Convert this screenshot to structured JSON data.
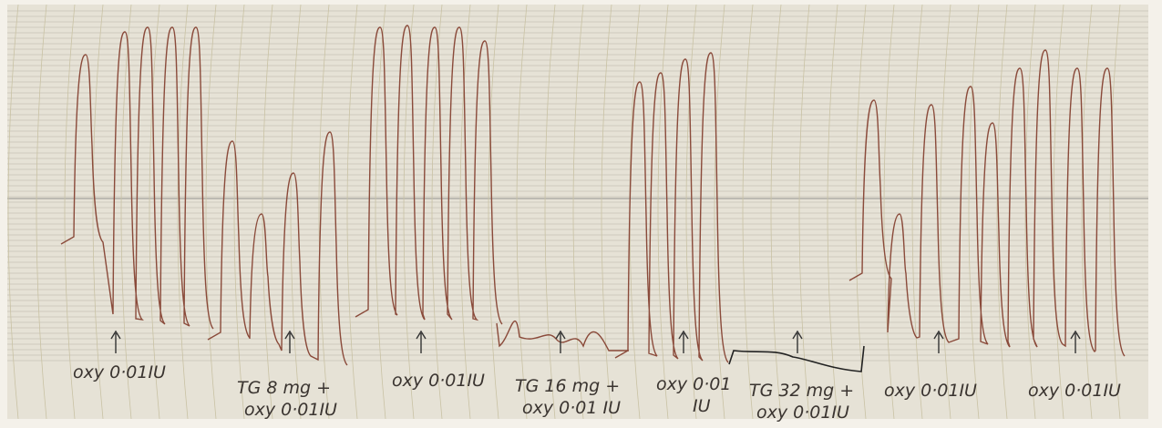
{
  "annotations": [
    {
      "lines": [
        "oxy 0·01IU"
      ]
    },
    {
      "lines": [
        "TG 8 mg +",
        "oxy 0·01IU"
      ]
    },
    {
      "lines": [
        "oxy 0·01IU"
      ]
    },
    {
      "lines": [
        "TG 16 mg +",
        "oxy 0·01 IU"
      ]
    },
    {
      "lines": [
        "oxy 0·01",
        "IU"
      ]
    },
    {
      "lines": [
        "TG 32 mg +",
        "oxy 0·01IU"
      ]
    },
    {
      "lines": [
        "oxy 0·01IU"
      ]
    },
    {
      "lines": [
        "oxy 0·01IU"
      ]
    }
  ]
}
